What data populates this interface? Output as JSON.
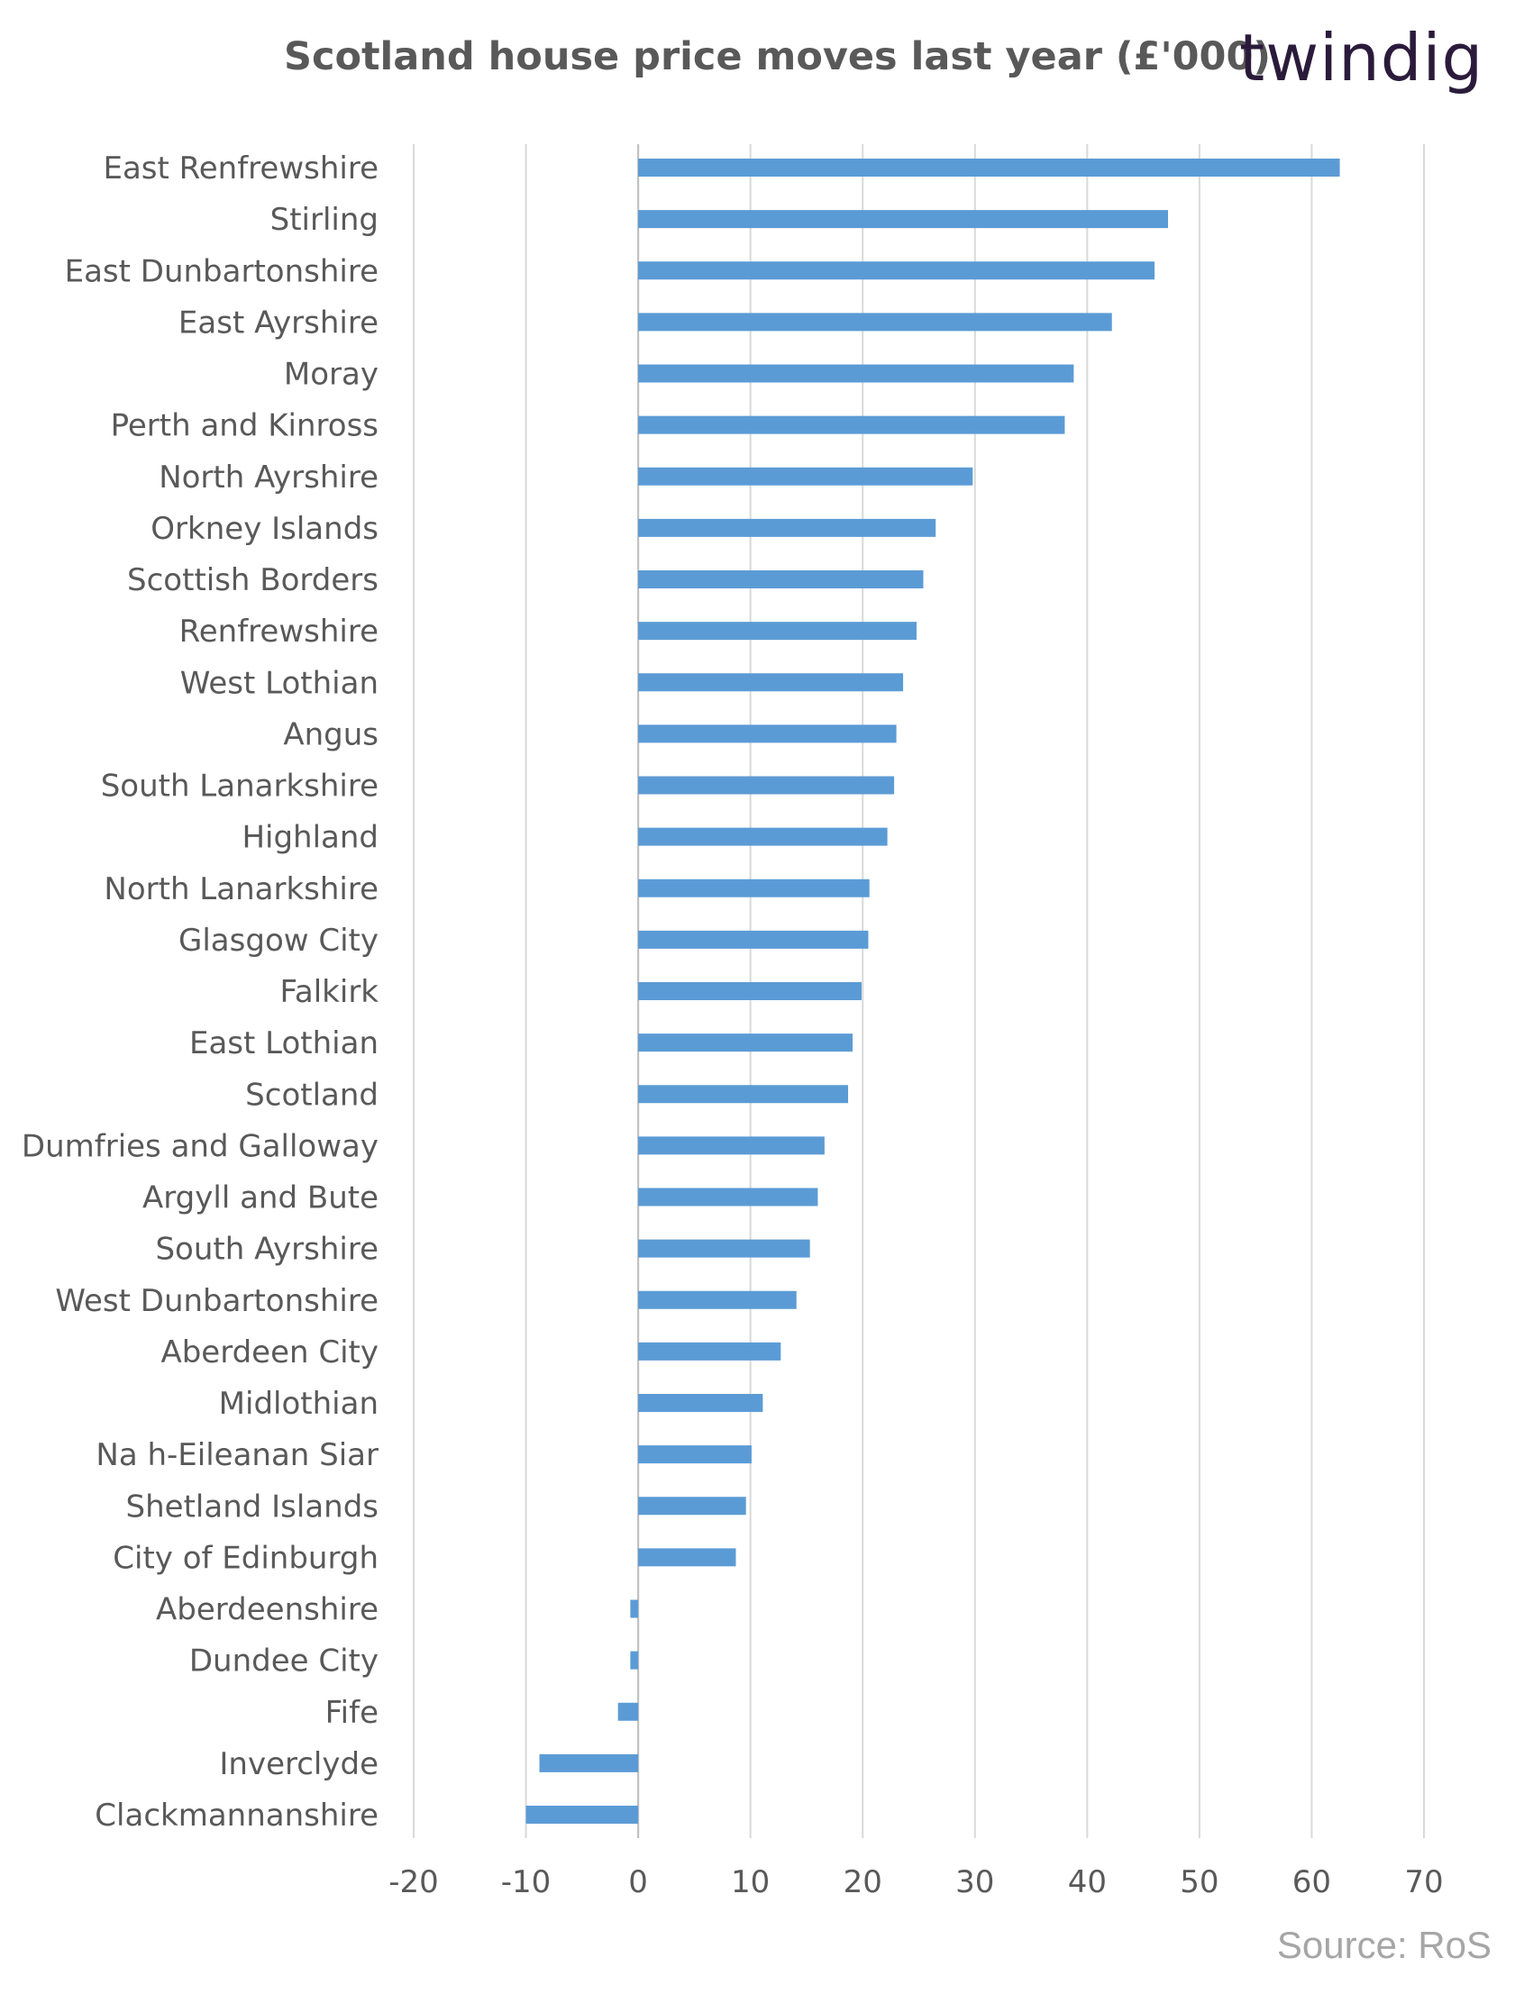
{
  "header": {
    "title": "Scotland house price moves last year (£'000)",
    "brand": "twindig"
  },
  "footer": {
    "source": "Source: RoS"
  },
  "colors": {
    "bar": "#5b9bd5",
    "gridline": "#d9d9d9",
    "label": "#595959",
    "brand_accent": "#f5a623"
  },
  "chart_data": {
    "type": "bar",
    "orientation": "horizontal",
    "title": "Scotland house price moves last year (£'000)",
    "xlim": [
      -20,
      70
    ],
    "x_ticks": [
      "-20",
      "-10",
      "0",
      "10",
      "20",
      "30",
      "40",
      "50",
      "60",
      "70"
    ],
    "grid": "vertical gridlines",
    "categories": [
      "East Renfrewshire",
      "Stirling",
      "East Dunbartonshire",
      "East Ayrshire",
      "Moray",
      "Perth and Kinross",
      "North Ayrshire",
      "Orkney Islands",
      "Scottish Borders",
      "Renfrewshire",
      "West Lothian",
      "Angus",
      "South Lanarkshire",
      "Highland",
      "North Lanarkshire",
      "Glasgow City",
      "Falkirk",
      "East Lothian",
      "Scotland",
      "Dumfries and Galloway",
      "Argyll and Bute",
      "South Ayrshire",
      "West Dunbartonshire",
      "Aberdeen City",
      "Midlothian",
      "Na h-Eileanan Siar",
      "Shetland Islands",
      "City of Edinburgh",
      "Aberdeenshire",
      "Dundee City",
      "Fife",
      "Inverclyde",
      "Clackmannanshire"
    ],
    "values": [
      62.5,
      47.2,
      46.0,
      42.2,
      38.8,
      38.0,
      29.8,
      26.5,
      25.4,
      24.8,
      23.6,
      23.0,
      22.8,
      22.2,
      20.6,
      20.5,
      19.9,
      19.1,
      18.7,
      16.6,
      16.0,
      15.3,
      14.1,
      12.7,
      11.1,
      10.1,
      9.6,
      8.7,
      -0.7,
      -0.7,
      -1.8,
      -8.8,
      -10.0
    ]
  }
}
